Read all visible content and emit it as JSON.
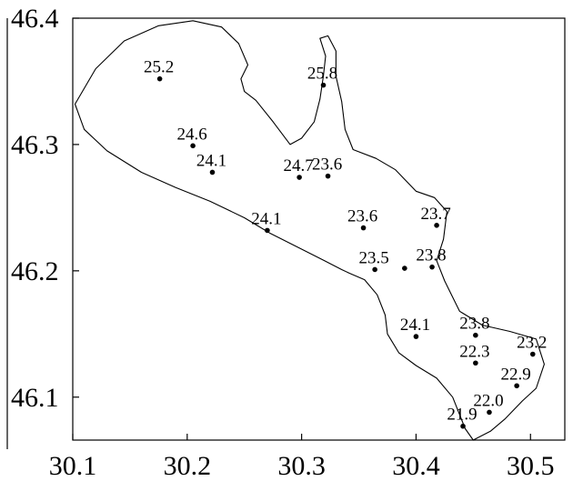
{
  "chart_data": {
    "type": "scatter",
    "title": "",
    "xlabel": "",
    "ylabel": "",
    "xlim": [
      30.1,
      30.53
    ],
    "ylim": [
      46.066,
      46.4
    ],
    "x_ticks": [
      "30.1",
      "30.2",
      "30.3",
      "30.4",
      "30.5"
    ],
    "y_ticks": [
      "46.1",
      "46.2",
      "46.3",
      "46.4"
    ],
    "grid": false,
    "coastline": [
      [
        30.102,
        46.332
      ],
      [
        30.12,
        46.36
      ],
      [
        30.145,
        46.382
      ],
      [
        30.175,
        46.394
      ],
      [
        30.205,
        46.398
      ],
      [
        30.23,
        46.393
      ],
      [
        30.245,
        46.38
      ],
      [
        30.253,
        46.363
      ],
      [
        30.247,
        46.352
      ],
      [
        30.25,
        46.342
      ],
      [
        30.26,
        46.335
      ],
      [
        30.275,
        46.318
      ],
      [
        30.29,
        46.3
      ],
      [
        30.3,
        46.305
      ],
      [
        30.311,
        46.318
      ],
      [
        30.316,
        46.336
      ],
      [
        30.319,
        46.354
      ],
      [
        30.321,
        46.37
      ],
      [
        30.316,
        46.384
      ],
      [
        30.323,
        46.386
      ],
      [
        30.33,
        46.374
      ],
      [
        30.33,
        46.354
      ],
      [
        30.335,
        46.334
      ],
      [
        30.338,
        46.312
      ],
      [
        30.345,
        46.296
      ],
      [
        30.365,
        46.289
      ],
      [
        30.382,
        46.28
      ],
      [
        30.4,
        46.263
      ],
      [
        30.416,
        46.258
      ],
      [
        30.427,
        46.247
      ],
      [
        30.424,
        46.225
      ],
      [
        30.418,
        46.208
      ],
      [
        30.425,
        46.192
      ],
      [
        30.438,
        46.168
      ],
      [
        30.458,
        46.157
      ],
      [
        30.482,
        46.152
      ],
      [
        30.505,
        46.146
      ],
      [
        30.512,
        46.126
      ],
      [
        30.505,
        46.107
      ],
      [
        30.493,
        46.097
      ],
      [
        30.478,
        46.083
      ],
      [
        30.465,
        46.073
      ],
      [
        30.45,
        46.066
      ],
      [
        30.443,
        46.075
      ],
      [
        30.432,
        46.1
      ],
      [
        30.418,
        46.115
      ],
      [
        30.4,
        46.125
      ],
      [
        30.385,
        46.135
      ],
      [
        30.375,
        46.15
      ],
      [
        30.373,
        46.165
      ],
      [
        30.366,
        46.181
      ],
      [
        30.355,
        46.193
      ],
      [
        30.342,
        46.198
      ],
      [
        30.335,
        46.201
      ],
      [
        30.32,
        46.208
      ],
      [
        30.298,
        46.218
      ],
      [
        30.272,
        46.23
      ],
      [
        30.25,
        46.242
      ],
      [
        30.22,
        46.255
      ],
      [
        30.19,
        46.266
      ],
      [
        30.16,
        46.278
      ],
      [
        30.13,
        46.295
      ],
      [
        30.11,
        46.312
      ],
      [
        30.102,
        46.332
      ]
    ],
    "points": [
      {
        "label": "25.2",
        "x": 30.176,
        "y": 46.352
      },
      {
        "label": "25.8",
        "x": 30.319,
        "y": 46.347
      },
      {
        "label": "24.6",
        "x": 30.205,
        "y": 46.299
      },
      {
        "label": "24.1",
        "x": 30.222,
        "y": 46.278
      },
      {
        "label": "24.7",
        "x": 30.298,
        "y": 46.274
      },
      {
        "label": "23.6",
        "x": 30.323,
        "y": 46.275
      },
      {
        "label": "24.1",
        "x": 30.27,
        "y": 46.232
      },
      {
        "label": "23.6",
        "x": 30.354,
        "y": 46.234
      },
      {
        "label": "23.7",
        "x": 30.418,
        "y": 46.236
      },
      {
        "label": "23.5",
        "x": 30.364,
        "y": 46.201
      },
      {
        "label": "",
        "x": 30.39,
        "y": 46.202
      },
      {
        "label": "23.8",
        "x": 30.414,
        "y": 46.203
      },
      {
        "label": "24.1",
        "x": 30.4,
        "y": 46.148
      },
      {
        "label": "23.8",
        "x": 30.452,
        "y": 46.149
      },
      {
        "label": "23.2",
        "x": 30.502,
        "y": 46.134
      },
      {
        "label": "22.3",
        "x": 30.452,
        "y": 46.127
      },
      {
        "label": "22.9",
        "x": 30.488,
        "y": 46.109
      },
      {
        "label": "22.0",
        "x": 30.464,
        "y": 46.088
      },
      {
        "label": "21.9",
        "x": 30.441,
        "y": 46.077
      }
    ]
  }
}
